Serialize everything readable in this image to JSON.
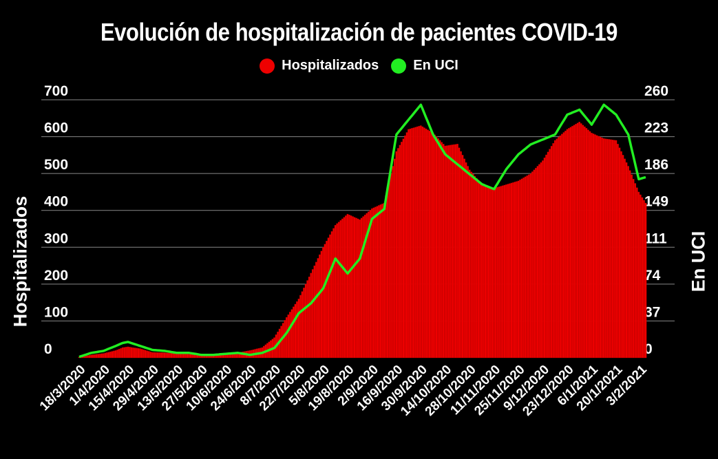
{
  "title": "Evolución de hospitalización de pacientes COVID-19",
  "colors": {
    "hospitalizados": "#ee0000",
    "uci": "#22ee22",
    "grid": "#888888",
    "background": "#000000"
  },
  "chart_data": {
    "type": "bar",
    "title": "Evolución de hospitalización de pacientes COVID-19",
    "ylabel": "Hospitalizados",
    "y2label": "En UCI",
    "legend": {
      "placement": "top-center",
      "items": [
        "Hospitalizados",
        "En UCI"
      ]
    },
    "grid": true,
    "ylim": [
      0,
      700
    ],
    "y2lim": [
      0,
      260
    ],
    "yticks": [
      "0",
      "100",
      "200",
      "300",
      "400",
      "500",
      "600",
      "700"
    ],
    "y2ticks": [
      "0",
      "37",
      "74",
      "111",
      "149",
      "186",
      "223",
      "260"
    ],
    "x_range": [
      "2020-03-18",
      "2021-02-06"
    ],
    "xticks": [
      "18/3/2020",
      "1/4/2020",
      "15/4/2020",
      "29/4/2020",
      "13/5/2020",
      "27/5/2020",
      "10/6/2020",
      "24/6/2020",
      "8/7/2020",
      "22/7/2020",
      "5/8/2020",
      "19/8/2020",
      "2/9/2020",
      "16/9/2020",
      "30/9/2020",
      "14/10/2020",
      "28/10/2020",
      "11/11/2020",
      "25/11/2020",
      "9/12/2020",
      "23/12/2020",
      "6/1/2021",
      "20/1/2021",
      "3/2/2021"
    ],
    "series": [
      {
        "name": "Hospitalizados",
        "type": "bar",
        "axis": "left",
        "points": [
          [
            "2020-03-18",
            2
          ],
          [
            "2020-03-25",
            8
          ],
          [
            "2020-04-01",
            12
          ],
          [
            "2020-04-08",
            20
          ],
          [
            "2020-04-12",
            28
          ],
          [
            "2020-04-15",
            30
          ],
          [
            "2020-04-22",
            25
          ],
          [
            "2020-04-29",
            15
          ],
          [
            "2020-05-06",
            14
          ],
          [
            "2020-05-13",
            12
          ],
          [
            "2020-05-20",
            10
          ],
          [
            "2020-05-27",
            9
          ],
          [
            "2020-06-03",
            10
          ],
          [
            "2020-06-10",
            12
          ],
          [
            "2020-06-17",
            14
          ],
          [
            "2020-06-24",
            20
          ],
          [
            "2020-07-01",
            28
          ],
          [
            "2020-07-08",
            55
          ],
          [
            "2020-07-15",
            110
          ],
          [
            "2020-07-22",
            160
          ],
          [
            "2020-07-29",
            230
          ],
          [
            "2020-08-05",
            300
          ],
          [
            "2020-08-12",
            360
          ],
          [
            "2020-08-19",
            390
          ],
          [
            "2020-08-26",
            375
          ],
          [
            "2020-09-02",
            405
          ],
          [
            "2020-09-09",
            420
          ],
          [
            "2020-09-16",
            560
          ],
          [
            "2020-09-23",
            620
          ],
          [
            "2020-09-30",
            630
          ],
          [
            "2020-10-07",
            610
          ],
          [
            "2020-10-14",
            575
          ],
          [
            "2020-10-21",
            580
          ],
          [
            "2020-10-28",
            510
          ],
          [
            "2020-11-04",
            470
          ],
          [
            "2020-11-11",
            460
          ],
          [
            "2020-11-18",
            470
          ],
          [
            "2020-11-25",
            480
          ],
          [
            "2020-12-02",
            500
          ],
          [
            "2020-12-09",
            535
          ],
          [
            "2020-12-16",
            590
          ],
          [
            "2020-12-23",
            620
          ],
          [
            "2020-12-30",
            640
          ],
          [
            "2021-01-06",
            610
          ],
          [
            "2021-01-13",
            595
          ],
          [
            "2021-01-20",
            590
          ],
          [
            "2021-01-27",
            520
          ],
          [
            "2021-02-02",
            450
          ],
          [
            "2021-02-06",
            420
          ]
        ]
      },
      {
        "name": "En UCI",
        "type": "line",
        "axis": "right",
        "points": [
          [
            "2020-03-18",
            1
          ],
          [
            "2020-03-25",
            5
          ],
          [
            "2020-04-01",
            7
          ],
          [
            "2020-04-08",
            12
          ],
          [
            "2020-04-12",
            15
          ],
          [
            "2020-04-15",
            16
          ],
          [
            "2020-04-22",
            12
          ],
          [
            "2020-04-29",
            8
          ],
          [
            "2020-05-06",
            7
          ],
          [
            "2020-05-13",
            5
          ],
          [
            "2020-05-20",
            5
          ],
          [
            "2020-05-27",
            3
          ],
          [
            "2020-06-03",
            3
          ],
          [
            "2020-06-10",
            4
          ],
          [
            "2020-06-17",
            5
          ],
          [
            "2020-06-24",
            3
          ],
          [
            "2020-07-01",
            5
          ],
          [
            "2020-07-08",
            10
          ],
          [
            "2020-07-15",
            25
          ],
          [
            "2020-07-22",
            45
          ],
          [
            "2020-07-29",
            55
          ],
          [
            "2020-08-05",
            70
          ],
          [
            "2020-08-12",
            100
          ],
          [
            "2020-08-19",
            85
          ],
          [
            "2020-08-26",
            100
          ],
          [
            "2020-09-02",
            140
          ],
          [
            "2020-09-09",
            150
          ],
          [
            "2020-09-16",
            225
          ],
          [
            "2020-09-23",
            240
          ],
          [
            "2020-09-30",
            255
          ],
          [
            "2020-10-07",
            225
          ],
          [
            "2020-10-14",
            205
          ],
          [
            "2020-10-21",
            195
          ],
          [
            "2020-10-28",
            185
          ],
          [
            "2020-11-04",
            175
          ],
          [
            "2020-11-11",
            170
          ],
          [
            "2020-11-18",
            190
          ],
          [
            "2020-11-25",
            205
          ],
          [
            "2020-12-02",
            215
          ],
          [
            "2020-12-09",
            220
          ],
          [
            "2020-12-16",
            225
          ],
          [
            "2020-12-23",
            245
          ],
          [
            "2020-12-30",
            250
          ],
          [
            "2021-01-06",
            235
          ],
          [
            "2021-01-13",
            255
          ],
          [
            "2021-01-20",
            245
          ],
          [
            "2021-01-27",
            225
          ],
          [
            "2021-02-02",
            180
          ],
          [
            "2021-02-06",
            182
          ]
        ]
      }
    ]
  }
}
